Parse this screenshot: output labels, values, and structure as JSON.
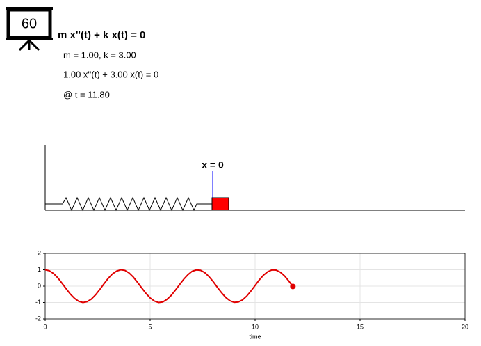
{
  "header": {
    "badge": "60",
    "equation": "m x''(t) + k x(t) = 0",
    "params": "m = 1.00, k = 3.00",
    "instance": "1.00 x''(t) + 3.00 x(t) = 0",
    "time": "@ t = 11.80"
  },
  "spring": {
    "label": "x = 0"
  },
  "chart_data": {
    "type": "line",
    "xlabel": "time",
    "x": [
      0,
      0.2,
      0.4,
      0.6,
      0.8,
      1.0,
      1.2,
      1.4,
      1.6,
      1.8,
      2.0,
      2.2,
      2.4,
      2.6,
      2.8,
      3.0,
      3.2,
      3.4,
      3.6,
      3.8,
      4.0,
      4.2,
      4.4,
      4.6,
      4.8,
      5.0,
      5.2,
      5.4,
      5.6,
      5.8,
      6.0,
      6.2,
      6.4,
      6.6,
      6.8,
      7.0,
      7.2,
      7.4,
      7.6,
      7.8,
      8.0,
      8.2,
      8.4,
      8.6,
      8.8,
      9.0,
      9.2,
      9.4,
      9.6,
      9.8,
      10.0,
      10.2,
      10.4,
      10.6,
      10.8,
      11.0,
      11.2,
      11.4,
      11.6,
      11.8
    ],
    "series": [
      {
        "color": "#e00000",
        "values": [
          1.0,
          0.94,
          0.77,
          0.51,
          0.18,
          -0.16,
          -0.49,
          -0.75,
          -0.93,
          -1.0,
          -0.95,
          -0.79,
          -0.53,
          -0.21,
          0.14,
          0.47,
          0.74,
          0.92,
          1.0,
          0.96,
          0.8,
          0.55,
          0.23,
          -0.11,
          -0.44,
          -0.72,
          -0.91,
          -1.0,
          -0.97,
          -0.81,
          -0.57,
          -0.25,
          0.09,
          0.42,
          0.7,
          0.91,
          0.99,
          0.97,
          0.83,
          0.59,
          0.28,
          -0.07,
          -0.4,
          -0.69,
          -0.89,
          -0.99,
          -0.97,
          -0.84,
          -0.61,
          -0.3,
          0.04,
          0.38,
          0.67,
          0.88,
          0.99,
          0.98,
          0.85,
          0.63,
          0.32,
          -0.02
        ]
      }
    ],
    "xlim": [
      0,
      20
    ],
    "xticks": [
      0,
      5,
      10,
      15,
      20
    ],
    "ylim": [
      -2,
      2
    ],
    "yticks": [
      -2,
      -1,
      0,
      1,
      2
    ],
    "grid": true
  }
}
